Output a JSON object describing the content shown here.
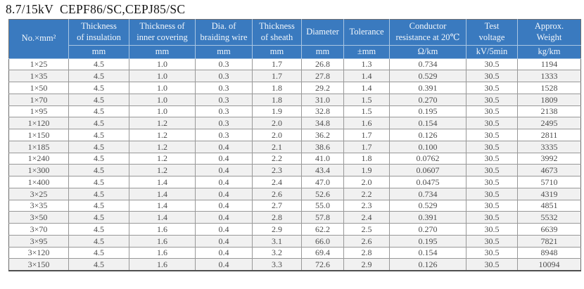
{
  "title": "8.7/15kV  CEPF86/SC,CEPJ85/SC",
  "colors": {
    "header_bg": "#3A7ABF",
    "header_text": "#F2F7FC",
    "stripe": "#F1F1F1",
    "grid_line": "#989898",
    "data_text": "#4D4D4D"
  },
  "table": {
    "columns": [
      {
        "lines": [
          "No.×mm²"
        ],
        "unit": null
      },
      {
        "lines": [
          "Thickness",
          "of insulation"
        ],
        "unit": "mm"
      },
      {
        "lines": [
          "Thickness of",
          "inner covering"
        ],
        "unit": "mm"
      },
      {
        "lines": [
          "Dia. of",
          "braiding wire"
        ],
        "unit": "mm"
      },
      {
        "lines": [
          "Thickness",
          "of sheath"
        ],
        "unit": "mm"
      },
      {
        "lines": [
          "Diameter"
        ],
        "unit": "mm"
      },
      {
        "lines": [
          "Tolerance"
        ],
        "unit": "±mm"
      },
      {
        "lines": [
          "Conductor",
          "resistance at 20℃"
        ],
        "unit": "Ω/km"
      },
      {
        "lines": [
          "Test",
          "voltage"
        ],
        "unit": "kV/5min"
      },
      {
        "lines": [
          "Approx.",
          "Weight"
        ],
        "unit": "kg/km"
      }
    ],
    "rows": [
      [
        "1×25",
        "4.5",
        "1.0",
        "0.3",
        "1.7",
        "26.8",
        "1.3",
        "0.734",
        "30.5",
        "1194"
      ],
      [
        "1×35",
        "4.5",
        "1.0",
        "0.3",
        "1.7",
        "27.8",
        "1.4",
        "0.529",
        "30.5",
        "1333"
      ],
      [
        "1×50",
        "4.5",
        "1.0",
        "0.3",
        "1.8",
        "29.2",
        "1.4",
        "0.391",
        "30.5",
        "1528"
      ],
      [
        "1×70",
        "4.5",
        "1.0",
        "0.3",
        "1.8",
        "31.0",
        "1.5",
        "0.270",
        "30.5",
        "1809"
      ],
      [
        "1×95",
        "4.5",
        "1.0",
        "0.3",
        "1.9",
        "32.8",
        "1.5",
        "0.195",
        "30.5",
        "2138"
      ],
      [
        "1×120",
        "4.5",
        "1.2",
        "0.3",
        "2.0",
        "34.8",
        "1.6",
        "0.154",
        "30.5",
        "2495"
      ],
      [
        "1×150",
        "4.5",
        "1.2",
        "0.3",
        "2.0",
        "36.2",
        "1.7",
        "0.126",
        "30.5",
        "2811"
      ],
      [
        "1×185",
        "4.5",
        "1.2",
        "0.4",
        "2.1",
        "38.6",
        "1.7",
        "0.100",
        "30.5",
        "3335"
      ],
      [
        "1×240",
        "4.5",
        "1.2",
        "0.4",
        "2.2",
        "41.0",
        "1.8",
        "0.0762",
        "30.5",
        "3992"
      ],
      [
        "1×300",
        "4.5",
        "1.2",
        "0.4",
        "2.3",
        "43.4",
        "1.9",
        "0.0607",
        "30.5",
        "4673"
      ],
      [
        "1×400",
        "4.5",
        "1.4",
        "0.4",
        "2.4",
        "47.0",
        "2.0",
        "0.0475",
        "30.5",
        "5710"
      ],
      [
        "3×25",
        "4.5",
        "1.4",
        "0.4",
        "2.6",
        "52.6",
        "2.2",
        "0.734",
        "30.5",
        "4319"
      ],
      [
        "3×35",
        "4.5",
        "1.4",
        "0.4",
        "2.7",
        "55.0",
        "2.3",
        "0.529",
        "30.5",
        "4851"
      ],
      [
        "3×50",
        "4.5",
        "1.4",
        "0.4",
        "2.8",
        "57.8",
        "2.4",
        "0.391",
        "30.5",
        "5532"
      ],
      [
        "3×70",
        "4.5",
        "1.6",
        "0.4",
        "2.9",
        "62.2",
        "2.5",
        "0.270",
        "30.5",
        "6639"
      ],
      [
        "3×95",
        "4.5",
        "1.6",
        "0.4",
        "3.1",
        "66.0",
        "2.6",
        "0.195",
        "30.5",
        "7821"
      ],
      [
        "3×120",
        "4.5",
        "1.6",
        "0.4",
        "3.2",
        "69.4",
        "2.8",
        "0.154",
        "30.5",
        "8948"
      ],
      [
        "3×150",
        "4.5",
        "1.6",
        "0.4",
        "3.3",
        "72.6",
        "2.9",
        "0.126",
        "30.5",
        "10094"
      ]
    ]
  }
}
